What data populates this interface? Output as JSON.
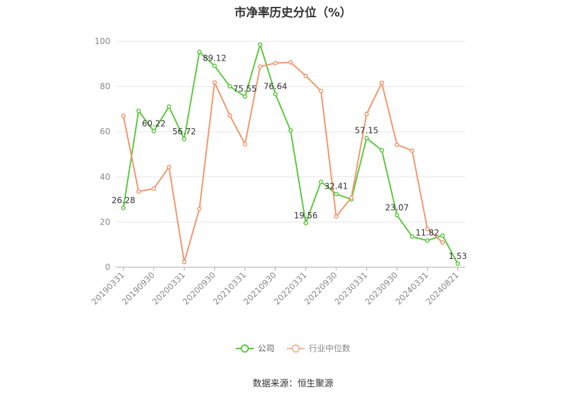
{
  "chart_data": {
    "type": "line",
    "title": "市净率历史分位（%）",
    "xlabel": "",
    "ylabel": "",
    "ylim": [
      0,
      100
    ],
    "yticks": [
      0,
      20,
      40,
      60,
      80,
      100
    ],
    "grid": true,
    "legend_position": "bottom",
    "categories": [
      "20190331",
      "20190630",
      "20190930",
      "20191231",
      "20200331",
      "20200630",
      "20200930",
      "20201231",
      "20210331",
      "20210630",
      "20210930",
      "20211231",
      "20220331",
      "20220630",
      "20220930",
      "20221231",
      "20230331",
      "20230630",
      "20230930",
      "20231231",
      "20240331",
      "20240630",
      "20240821"
    ],
    "tick_labels": [
      "20190331",
      "20190930",
      "20200331",
      "20200930",
      "20210331",
      "20210930",
      "20220331",
      "20220930",
      "20230331",
      "20230930",
      "20240331",
      "20240821"
    ],
    "series": [
      {
        "name": "公司",
        "color": "#5ac83c",
        "values": [
          26.28,
          69.2,
          60.22,
          71.1,
          56.72,
          95.3,
          89.12,
          80.1,
          75.55,
          98.6,
          76.64,
          60.5,
          19.56,
          37.8,
          32.41,
          30.0,
          57.15,
          51.8,
          23.07,
          13.5,
          11.82,
          14.0,
          1.53
        ],
        "labels": {
          "0": "26.28",
          "2": "60.22",
          "4": "56.72",
          "6": "89.12",
          "8": "75.55",
          "10": "76.64",
          "12": "19.56",
          "14": "32.41",
          "16": "57.15",
          "18": "23.07",
          "20": "11.82",
          "22": "1.53"
        }
      },
      {
        "name": "行业中位数",
        "color": "#f2956b",
        "values": [
          67.0,
          33.5,
          34.8,
          44.3,
          2.3,
          25.8,
          81.8,
          67.2,
          54.5,
          88.8,
          90.4,
          90.7,
          84.7,
          78.0,
          22.5,
          30.8,
          67.8,
          81.6,
          54.2,
          51.6,
          17.0,
          10.9,
          null
        ]
      }
    ]
  },
  "source_text": "数据来源：恒生聚源"
}
